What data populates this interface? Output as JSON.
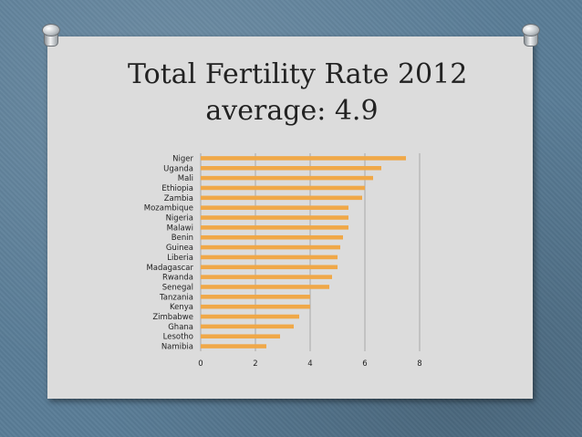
{
  "slide": {
    "title_line1": "Total Fertility Rate 2012",
    "title_line2": "average: 4.9"
  },
  "chart_data": {
    "type": "bar",
    "orientation": "horizontal",
    "title": "",
    "xlabel": "",
    "ylabel": "",
    "xlim": [
      0,
      8
    ],
    "xticks": [
      0,
      2,
      4,
      6,
      8
    ],
    "grid": "vertical gridlines",
    "legend": "none",
    "bar_color": "#f0a848",
    "categories": [
      "Niger",
      "Uganda",
      "Mali",
      "Ethiopia",
      "Zambia",
      "Mozambique",
      "Nigeria",
      "Malawi",
      "Benin",
      "Guinea",
      "Liberia",
      "Madagascar",
      "Rwanda",
      "Senegal",
      "Tanzania",
      "Kenya",
      "Zimbabwe",
      "Ghana",
      "Lesotho",
      "Namibia"
    ],
    "values": [
      7.5,
      6.6,
      6.3,
      6.0,
      5.9,
      5.4,
      5.4,
      5.4,
      5.2,
      5.1,
      5.0,
      5.0,
      4.8,
      4.7,
      4.0,
      4.0,
      3.6,
      3.4,
      2.9,
      2.4
    ]
  }
}
